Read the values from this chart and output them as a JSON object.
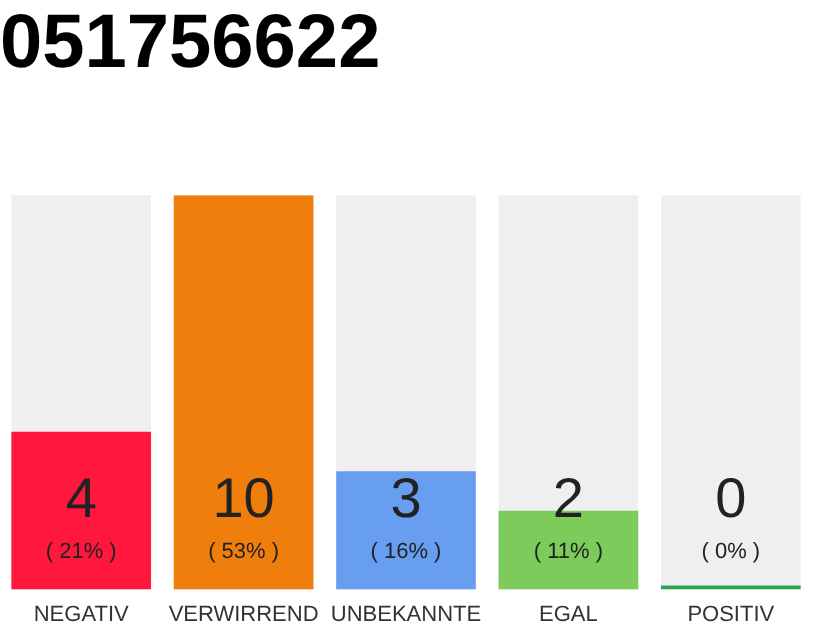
{
  "chart_data": {
    "type": "bar",
    "title": "051756622",
    "categories": [
      "NEGATIV",
      "VERWIRREND",
      "UNBEKANNTE",
      "EGAL",
      "POSITIV"
    ],
    "values": [
      4,
      10,
      3,
      2,
      0
    ],
    "colors": [
      "#ff173d",
      "#f07e0c",
      "#689eef",
      "#7ccb5b",
      "#2ea44f"
    ],
    "annotations": [
      "( 21% )",
      "( 53% )",
      "( 16% )",
      "( 11% )",
      "( 0% )"
    ],
    "data_labels": true,
    "tick_labels": "x",
    "grid": false,
    "legend": false
  }
}
